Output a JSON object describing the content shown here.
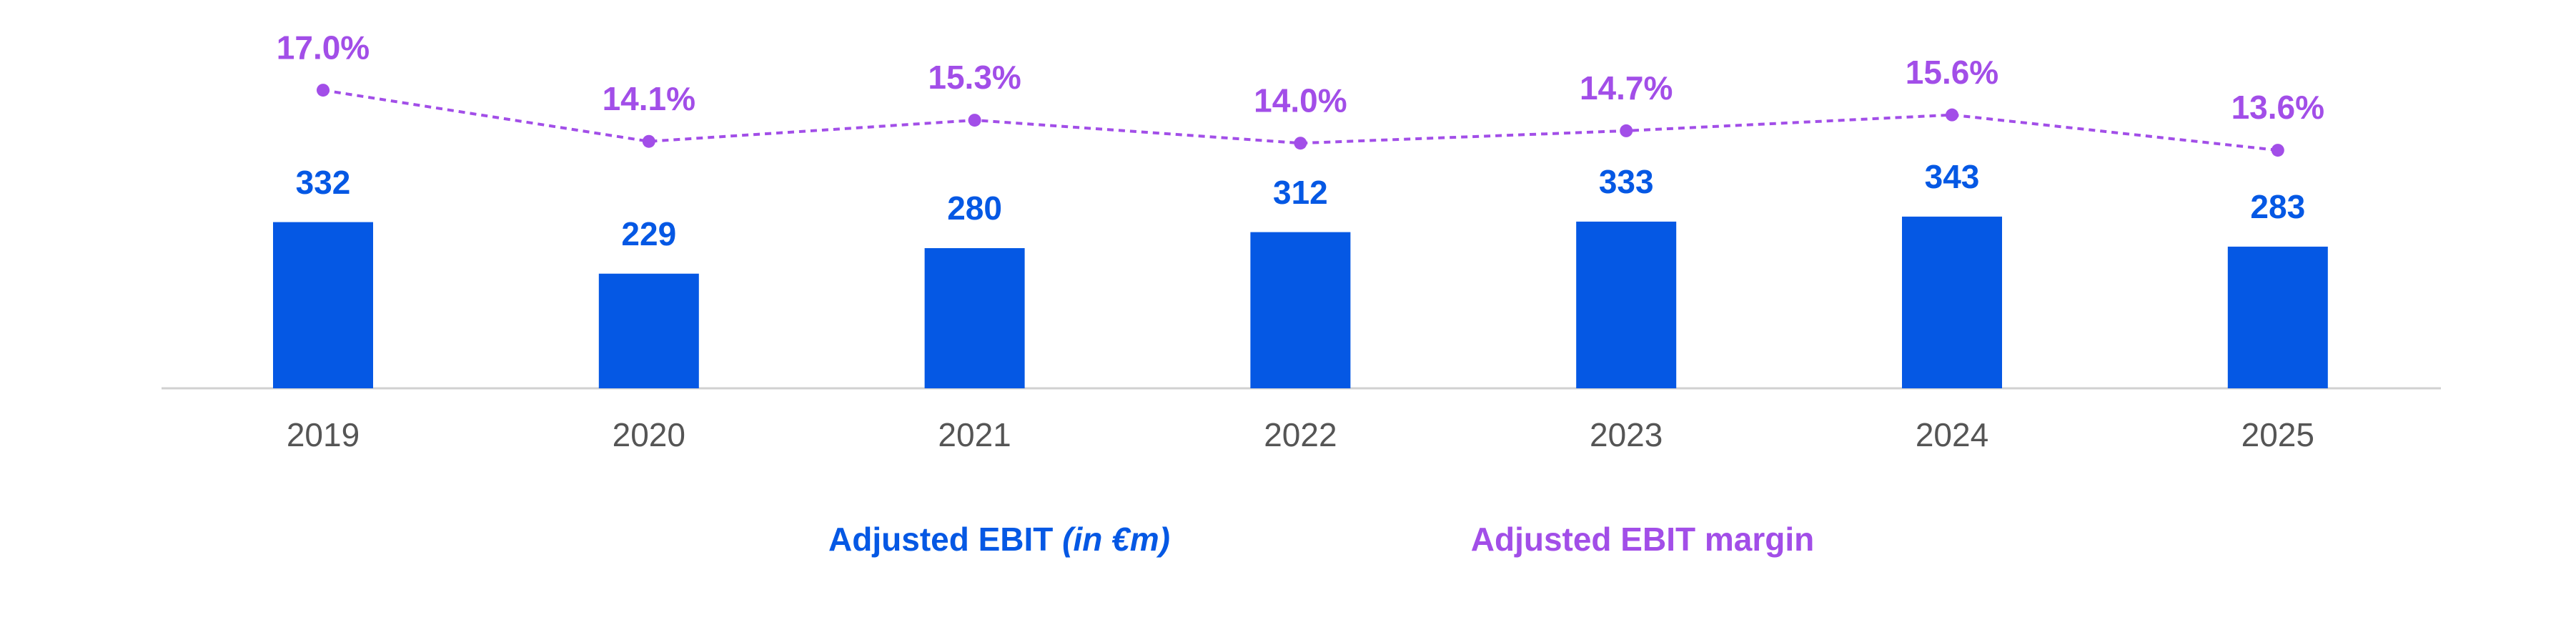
{
  "chart_data": {
    "type": "bar-line",
    "categories": [
      "2019",
      "2020",
      "2021",
      "2022",
      "2023",
      "2024",
      "2025"
    ],
    "series": [
      {
        "name": "Adjusted EBIT",
        "unit": "(in €m)",
        "type": "bar",
        "color": "#0558e4",
        "values": [
          332,
          229,
          280,
          312,
          333,
          343,
          283
        ]
      },
      {
        "name": "Adjusted EBIT margin",
        "type": "line",
        "axis": "y2",
        "color": "#a24ee8",
        "dashed": true,
        "values": [
          17.0,
          14.1,
          15.3,
          14.0,
          14.7,
          15.6,
          13.6
        ],
        "value_labels": [
          "17.0%",
          "14.1%",
          "15.3%",
          "14.0%",
          "14.7%",
          "15.6%",
          "13.6%"
        ]
      }
    ],
    "legend": "bottom"
  }
}
